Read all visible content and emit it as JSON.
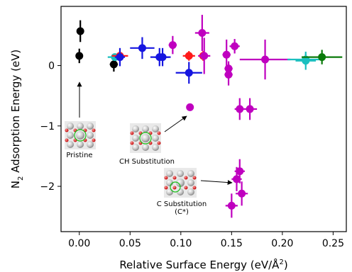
{
  "chart_data": {
    "type": "scatter",
    "xlabel_main": "Relative Surface Energy (eV/Å",
    "xlabel_sup": "2",
    "xlabel_end": ")",
    "ylabel_pre": "N",
    "ylabel_sub": "2",
    "ylabel_post": " Adsorption Energy (eV)",
    "xlim": [
      -0.018,
      0.263
    ],
    "ylim": [
      -2.75,
      0.98
    ],
    "xticks": [
      0.0,
      0.05,
      0.1,
      0.15,
      0.2,
      0.25
    ],
    "xtick_labels": [
      "0.00",
      "0.05",
      "0.10",
      "0.15",
      "0.20",
      "0.25"
    ],
    "yticks": [
      0,
      -1,
      -2
    ],
    "ytick_labels": [
      "0",
      "−1",
      "−2"
    ],
    "grid": false,
    "colors": {
      "black": "#000000",
      "cyan": "#1bbfbf",
      "red": "#ff1a1a",
      "blue": "#1515e0",
      "magenta": "#bf00bf",
      "green": "#0a7a0a"
    },
    "points": [
      {
        "color": "black",
        "x": 0.001,
        "y": 0.57,
        "xerr": 0.003,
        "yerr": 0.18
      },
      {
        "color": "black",
        "x": 0.0,
        "y": 0.16,
        "xerr": 0.002,
        "yerr": 0.12
      },
      {
        "color": "black",
        "x": 0.034,
        "y": 0.02,
        "xerr": 0.004,
        "yerr": 0.12
      },
      {
        "color": "cyan",
        "x": 0.035,
        "y": 0.14,
        "xerr": 0.007,
        "yerr": 0.05
      },
      {
        "color": "red",
        "x": 0.04,
        "y": 0.16,
        "xerr": 0.008,
        "yerr": 0.08
      },
      {
        "color": "blue",
        "x": 0.04,
        "y": 0.14,
        "xerr": 0.005,
        "yerr": 0.15
      },
      {
        "color": "blue",
        "x": 0.062,
        "y": 0.29,
        "xerr": 0.012,
        "yerr": 0.18
      },
      {
        "color": "blue",
        "x": 0.079,
        "y": 0.14,
        "xerr": 0.009,
        "yerr": 0.15
      },
      {
        "color": "blue",
        "x": 0.082,
        "y": 0.14,
        "xerr": 0.008,
        "yerr": 0.15
      },
      {
        "color": "magenta",
        "x": 0.092,
        "y": 0.34,
        "xerr": 0.004,
        "yerr": 0.15
      },
      {
        "color": "red",
        "x": 0.108,
        "y": 0.16,
        "xerr": 0.006,
        "yerr": 0.08
      },
      {
        "color": "blue",
        "x": 0.108,
        "y": -0.12,
        "xerr": 0.013,
        "yerr": 0.18
      },
      {
        "color": "magenta",
        "x": 0.121,
        "y": 0.54,
        "xerr": 0.007,
        "yerr": 0.3
      },
      {
        "color": "red",
        "x": 0.122,
        "y": 0.16,
        "xerr": 0.004,
        "yerr": 0.08
      },
      {
        "color": "magenta",
        "x": 0.123,
        "y": 0.16,
        "xerr": 0.006,
        "yerr": 0.3
      },
      {
        "color": "magenta",
        "x": 0.109,
        "y": -0.69,
        "xerr": 0.0,
        "yerr": 0.0
      },
      {
        "color": "magenta",
        "x": 0.145,
        "y": 0.18,
        "xerr": 0.004,
        "yerr": 0.25
      },
      {
        "color": "magenta",
        "x": 0.147,
        "y": -0.05,
        "xerr": 0.004,
        "yerr": 0.12
      },
      {
        "color": "magenta",
        "x": 0.147,
        "y": -0.15,
        "xerr": 0.004,
        "yerr": 0.18
      },
      {
        "color": "magenta",
        "x": 0.153,
        "y": 0.32,
        "xerr": 0.005,
        "yerr": 0.12
      },
      {
        "color": "magenta",
        "x": 0.158,
        "y": -0.72,
        "xerr": 0.005,
        "yerr": 0.18
      },
      {
        "color": "magenta",
        "x": 0.168,
        "y": -0.72,
        "xerr": 0.007,
        "yerr": 0.18
      },
      {
        "color": "magenta",
        "x": 0.183,
        "y": 0.1,
        "xerr": 0.025,
        "yerr": 0.33
      },
      {
        "color": "magenta",
        "x": 0.158,
        "y": -1.75,
        "xerr": 0.005,
        "yerr": 0.2
      },
      {
        "color": "magenta",
        "x": 0.155,
        "y": -1.88,
        "xerr": 0.005,
        "yerr": 0.2
      },
      {
        "color": "magenta",
        "x": 0.16,
        "y": -2.12,
        "xerr": 0.006,
        "yerr": 0.2
      },
      {
        "color": "magenta",
        "x": 0.15,
        "y": -2.32,
        "xerr": 0.006,
        "yerr": 0.2
      },
      {
        "color": "cyan",
        "x": 0.223,
        "y": 0.1,
        "xerr": 0.018,
        "yerr": 0.1
      },
      {
        "color": "cyan",
        "x": 0.223,
        "y": 0.08,
        "xerr": 0.01,
        "yerr": 0.15
      },
      {
        "color": "green",
        "x": 0.239,
        "y": 0.14,
        "xerr": 0.02,
        "yerr": 0.12
      }
    ],
    "annotations": [
      {
        "label": "Pristine",
        "inset": "pristine"
      },
      {
        "label": "CH Substitution",
        "inset": "ch"
      },
      {
        "label": "C Substitution",
        "sublabel": "(C*)",
        "inset": "c"
      }
    ]
  }
}
